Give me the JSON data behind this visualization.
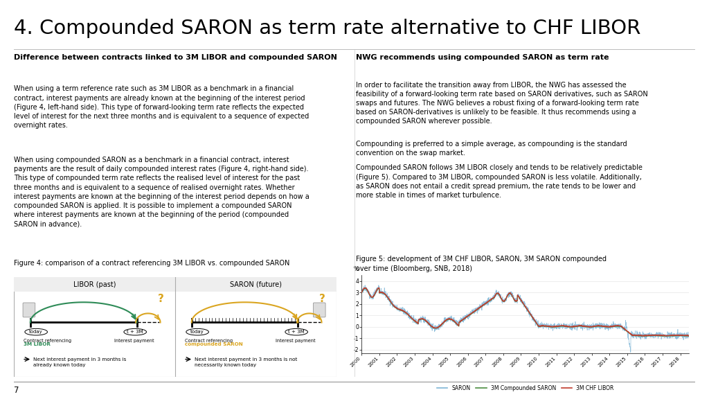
{
  "title": "4. Compounded SARON as term rate alternative to CHF LIBOR",
  "title_fontsize": 21,
  "left_col_header": "Difference between contracts linked to 3M LIBOR and compounded SARON",
  "left_col_text1": "When using a term reference rate such as 3M LIBOR as a benchmark in a financial\ncontract, interest payments are already known at the beginning of the interest period\n(Figure 4, left-hand side). This type of forward-looking term rate reflects the expected\nlevel of interest for the next three months and is equivalent to a sequence of expected\novernight rates.",
  "left_col_text2": "When using compounded SARON as a benchmark in a financial contract, interest\npayments are the result of daily compounded interest rates (Figure 4, right-hand side).\nThis type of compounded term rate reflects the realised level of interest for the past\nthree months and is equivalent to a sequence of realised overnight rates. Whether\ninterest payments are known at the beginning of the interest period depends on how a\ncompounded SARON is applied. It is possible to implement a compounded SARON\nwhere interest payments are known at the beginning of the period (compounded\nSARON in advance).",
  "fig4_caption": "Figure 4: comparison of a contract referencing 3M LIBOR vs. compounded SARON",
  "right_col_header": "NWG recommends using compounded SARON as term rate",
  "right_col_text1": "In order to facilitate the transition away from LIBOR, the NWG has assessed the\nfeasibility of a forward-looking term rate based on SARON derivatives, such as SARON\nswaps and futures. The NWG believes a robust fixing of a forward-looking term rate\nbased on SARON-derivatives is unlikely to be feasible. It thus recommends using a\ncompounded SARON wherever possible.",
  "right_col_text2": "Compounding is preferred to a simple average, as compounding is the standard\nconvention on the swap market.",
  "right_col_text3": "Compounded SARON follows 3M LIBOR closely and tends to be relatively predictable\n(Figure 5). Compared to 3M LIBOR, compounded SARON is less volatile. Additionally,\nas SARON does not entail a credit spread premium, the rate tends to be lower and\nmore stable in times of market turbulence.",
  "fig5_caption": "Figure 5: development of 3M CHF LIBOR, SARON, 3M SARON compounded\nover time (Bloomberg, SNB, 2018)",
  "libor_panel_color": "#2e8b57",
  "saron_panel_color": "#DAA520",
  "chart_saron_color": "#7eb5d6",
  "chart_compounded_color": "#4a8c3f",
  "chart_libor_color": "#c0392b",
  "recommends_color": "#DAA520",
  "page_number": "7",
  "background_color": "#ffffff",
  "text_color": "#000000",
  "body_fontsize": 7.0,
  "header_fontsize": 8.0,
  "yticks": [
    -2,
    -1,
    0,
    1,
    2,
    3,
    4
  ],
  "xtick_years": [
    2000,
    2001,
    2002,
    2003,
    2004,
    2005,
    2006,
    2007,
    2008,
    2009,
    2010,
    2011,
    2012,
    2013,
    2014,
    2015,
    2016,
    2017,
    2018
  ],
  "chart_xlim": [
    2000,
    2018.5
  ],
  "chart_ylim": [
    -2.3,
    4.5
  ]
}
